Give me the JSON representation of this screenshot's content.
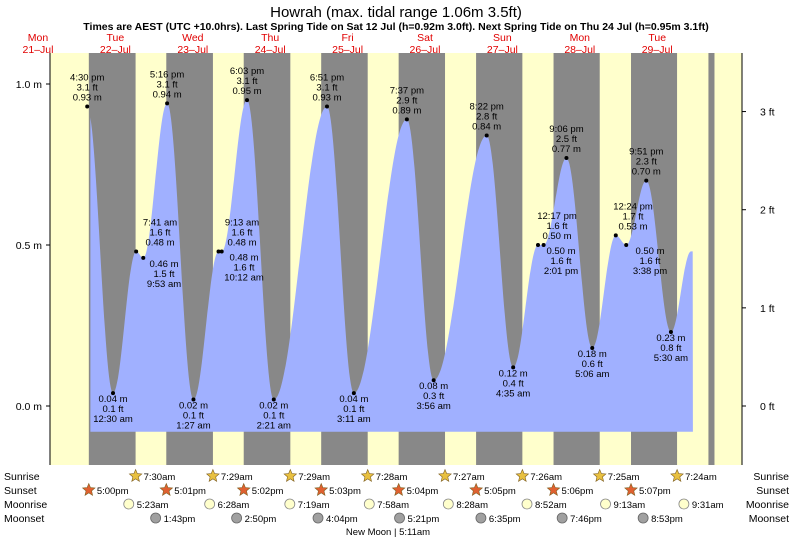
{
  "title": "Howrah (max. tidal range 1.06m 3.5ft)",
  "subtitle": "Times are AEST (UTC +10.0hrs). Last Spring Tide on Sat 12 Jul (h=0.92m 3.0ft). Next Spring Tide on Thu 24 Jul (h=0.95m 3.1ft)",
  "colors": {
    "day": "#ffffcc",
    "night": "#888888",
    "water": "#a0b0ff",
    "day_labels": "#e00000",
    "sun_star": "#e8c040",
    "sunset_star": "#e06030",
    "moonrise": "#ffffcc",
    "moonset": "#a0a0a0"
  },
  "chart_data": {
    "type": "area",
    "title": "Howrah (max. tidal range 1.06m 3.5ft)",
    "y_left_ticks": [
      "0.0 m",
      "0.5 m",
      "1.0 m"
    ],
    "y_right_ticks": [
      "0 ft",
      "1 ft",
      "2 ft",
      "3 ft"
    ],
    "ylim_m": [
      -0.08,
      1.06
    ],
    "x_range_hours": [
      0,
      211
    ],
    "days": [
      {
        "dow": "Mon",
        "date": "21–Jul",
        "hour": 0
      },
      {
        "dow": "Tue",
        "date": "22–Jul",
        "hour": 24
      },
      {
        "dow": "Wed",
        "date": "23–Jul",
        "hour": 48
      },
      {
        "dow": "Thu",
        "date": "24–Jul",
        "hour": 72
      },
      {
        "dow": "Fri",
        "date": "25–Jul",
        "hour": 96
      },
      {
        "dow": "Sat",
        "date": "26–Jul",
        "hour": 120
      },
      {
        "dow": "Sun",
        "date": "27–Jul",
        "hour": 144
      },
      {
        "dow": "Mon",
        "date": "28–Jul",
        "hour": 168
      },
      {
        "dow": "Tue",
        "date": "29–Jul",
        "hour": 192
      }
    ],
    "night_spans": [
      [
        17.0,
        31.5
      ],
      [
        41.02,
        55.48
      ],
      [
        65.03,
        79.48
      ],
      [
        89.05,
        103.47
      ],
      [
        113.07,
        127.45
      ],
      [
        137.08,
        151.43
      ],
      [
        161.1,
        175.42
      ],
      [
        185.12,
        199.4
      ],
      [
        209.13,
        211
      ]
    ],
    "tides": [
      {
        "time": "4:30 pm",
        "m": 0.93,
        "ft": "3.1 ft",
        "m_text": "0.93 m",
        "type": "high",
        "hour": 16.5
      },
      {
        "time": "12:30 am",
        "m": 0.04,
        "ft": "0.1 ft",
        "m_text": "0.04 m",
        "type": "low",
        "hour": 24.5
      },
      {
        "time": "7:41 am",
        "m": 0.48,
        "ft": "1.6 ft",
        "m_text": "0.48 m",
        "type": "high",
        "hour": 31.68
      },
      {
        "time": "9:53 am",
        "m": 0.46,
        "ft": "1.5 ft",
        "m_text": "0.46 m",
        "type": "low",
        "hour": 33.88
      },
      {
        "time": "5:16 pm",
        "m": 0.94,
        "ft": "3.1 ft",
        "m_text": "0.94 m",
        "type": "high",
        "hour": 41.27
      },
      {
        "time": "1:27 am",
        "m": 0.02,
        "ft": "0.1 ft",
        "m_text": "0.02 m",
        "type": "low",
        "hour": 49.45
      },
      {
        "time": "9:13 am",
        "m": 0.48,
        "ft": "1.6 ft",
        "m_text": "0.48 m",
        "type": "high",
        "hour": 57.22
      },
      {
        "time": "10:12 am",
        "m": 0.48,
        "ft": "1.6 ft",
        "m_text": "0.48 m",
        "type": "low",
        "hour": 58.2
      },
      {
        "time": "6:03 pm",
        "m": 0.95,
        "ft": "3.1 ft",
        "m_text": "0.95 m",
        "type": "high",
        "hour": 66.05
      },
      {
        "time": "2:21 am",
        "m": 0.02,
        "ft": "0.1 ft",
        "m_text": "0.02 m",
        "type": "low",
        "hour": 74.35
      },
      {
        "time": "6:51 pm",
        "m": 0.93,
        "ft": "3.1 ft",
        "m_text": "0.93 m",
        "type": "high",
        "hour": 90.85
      },
      {
        "time": "3:11 am",
        "m": 0.04,
        "ft": "0.1 ft",
        "m_text": "0.04 m",
        "type": "low",
        "hour": 99.18
      },
      {
        "time": "7:37 pm",
        "m": 0.89,
        "ft": "2.9 ft",
        "m_text": "0.89 m",
        "type": "high",
        "hour": 115.62
      },
      {
        "time": "3:56 am",
        "m": 0.08,
        "ft": "0.3 ft",
        "m_text": "0.08 m",
        "type": "low",
        "hour": 123.93
      },
      {
        "time": "8:22 pm",
        "m": 0.84,
        "ft": "2.8 ft",
        "m_text": "0.84 m",
        "type": "high",
        "hour": 140.37
      },
      {
        "time": "4:35 am",
        "m": 0.12,
        "ft": "0.4 ft",
        "m_text": "0.12 m",
        "type": "low",
        "hour": 148.58
      },
      {
        "time": "12:17 pm",
        "m": 0.5,
        "ft": "1.6 ft",
        "m_text": "0.50 m",
        "type": "high",
        "hour": 156.28
      },
      {
        "time": "2:01 pm",
        "m": 0.5,
        "ft": "1.6 ft",
        "m_text": "0.50 m",
        "type": "low",
        "hour": 158.02
      },
      {
        "time": "9:06 pm",
        "m": 0.77,
        "ft": "2.5 ft",
        "m_text": "0.77 m",
        "type": "high",
        "hour": 165.1
      },
      {
        "time": "5:06 am",
        "m": 0.18,
        "ft": "0.6 ft",
        "m_text": "0.18 m",
        "type": "low",
        "hour": 173.1
      },
      {
        "time": "12:24 pm",
        "m": 0.53,
        "ft": "1.7 ft",
        "m_text": "0.53 m",
        "type": "high",
        "hour": 180.4
      },
      {
        "time": "3:38 pm",
        "m": 0.5,
        "ft": "1.6 ft",
        "m_text": "0.50 m",
        "type": "low",
        "hour": 183.63
      },
      {
        "time": "9:51 pm",
        "m": 0.7,
        "ft": "2.3 ft",
        "m_text": "0.70 m",
        "type": "high",
        "hour": 189.85
      },
      {
        "time": "5:30 am",
        "m": 0.23,
        "ft": "0.8 ft",
        "m_text": "0.23 m",
        "type": "low",
        "hour": 197.5
      }
    ]
  },
  "rows": {
    "sunrise_label": "Sunrise",
    "sunset_label": "Sunset",
    "moonrise_label": "Moonrise",
    "moonset_label": "Moonset",
    "sunrise": [
      {
        "time": "7:30am",
        "hour": 31.5
      },
      {
        "time": "7:29am",
        "hour": 55.48
      },
      {
        "time": "7:29am",
        "hour": 79.48
      },
      {
        "time": "7:28am",
        "hour": 103.47
      },
      {
        "time": "7:27am",
        "hour": 127.45
      },
      {
        "time": "7:26am",
        "hour": 151.43
      },
      {
        "time": "7:25am",
        "hour": 175.42
      },
      {
        "time": "7:24am",
        "hour": 199.4
      }
    ],
    "sunset": [
      {
        "time": "5:00pm",
        "hour": 17.0
      },
      {
        "time": "5:01pm",
        "hour": 41.02
      },
      {
        "time": "5:02pm",
        "hour": 65.03
      },
      {
        "time": "5:03pm",
        "hour": 89.05
      },
      {
        "time": "5:04pm",
        "hour": 113.07
      },
      {
        "time": "5:05pm",
        "hour": 137.08
      },
      {
        "time": "5:06pm",
        "hour": 161.1
      },
      {
        "time": "5:07pm",
        "hour": 185.12
      }
    ],
    "moonrise": [
      {
        "time": "5:23am",
        "hour": 29.38
      },
      {
        "time": "6:28am",
        "hour": 54.47
      },
      {
        "time": "7:19am",
        "hour": 79.32
      },
      {
        "time": "7:58am",
        "hour": 103.97
      },
      {
        "time": "8:28am",
        "hour": 128.47
      },
      {
        "time": "8:52am",
        "hour": 152.87
      },
      {
        "time": "9:13am",
        "hour": 177.22
      },
      {
        "time": "9:31am",
        "hour": 201.52
      }
    ],
    "moonset": [
      {
        "time": "1:43pm",
        "hour": 37.72
      },
      {
        "time": "2:50pm",
        "hour": 62.83
      },
      {
        "time": "4:04pm",
        "hour": 88.07
      },
      {
        "time": "5:21pm",
        "hour": 113.35
      },
      {
        "time": "6:35pm",
        "hour": 138.58
      },
      {
        "time": "7:46pm",
        "hour": 163.77
      },
      {
        "time": "8:53pm",
        "hour": 188.88
      }
    ],
    "new_moon": "New Moon | 5:11am"
  }
}
